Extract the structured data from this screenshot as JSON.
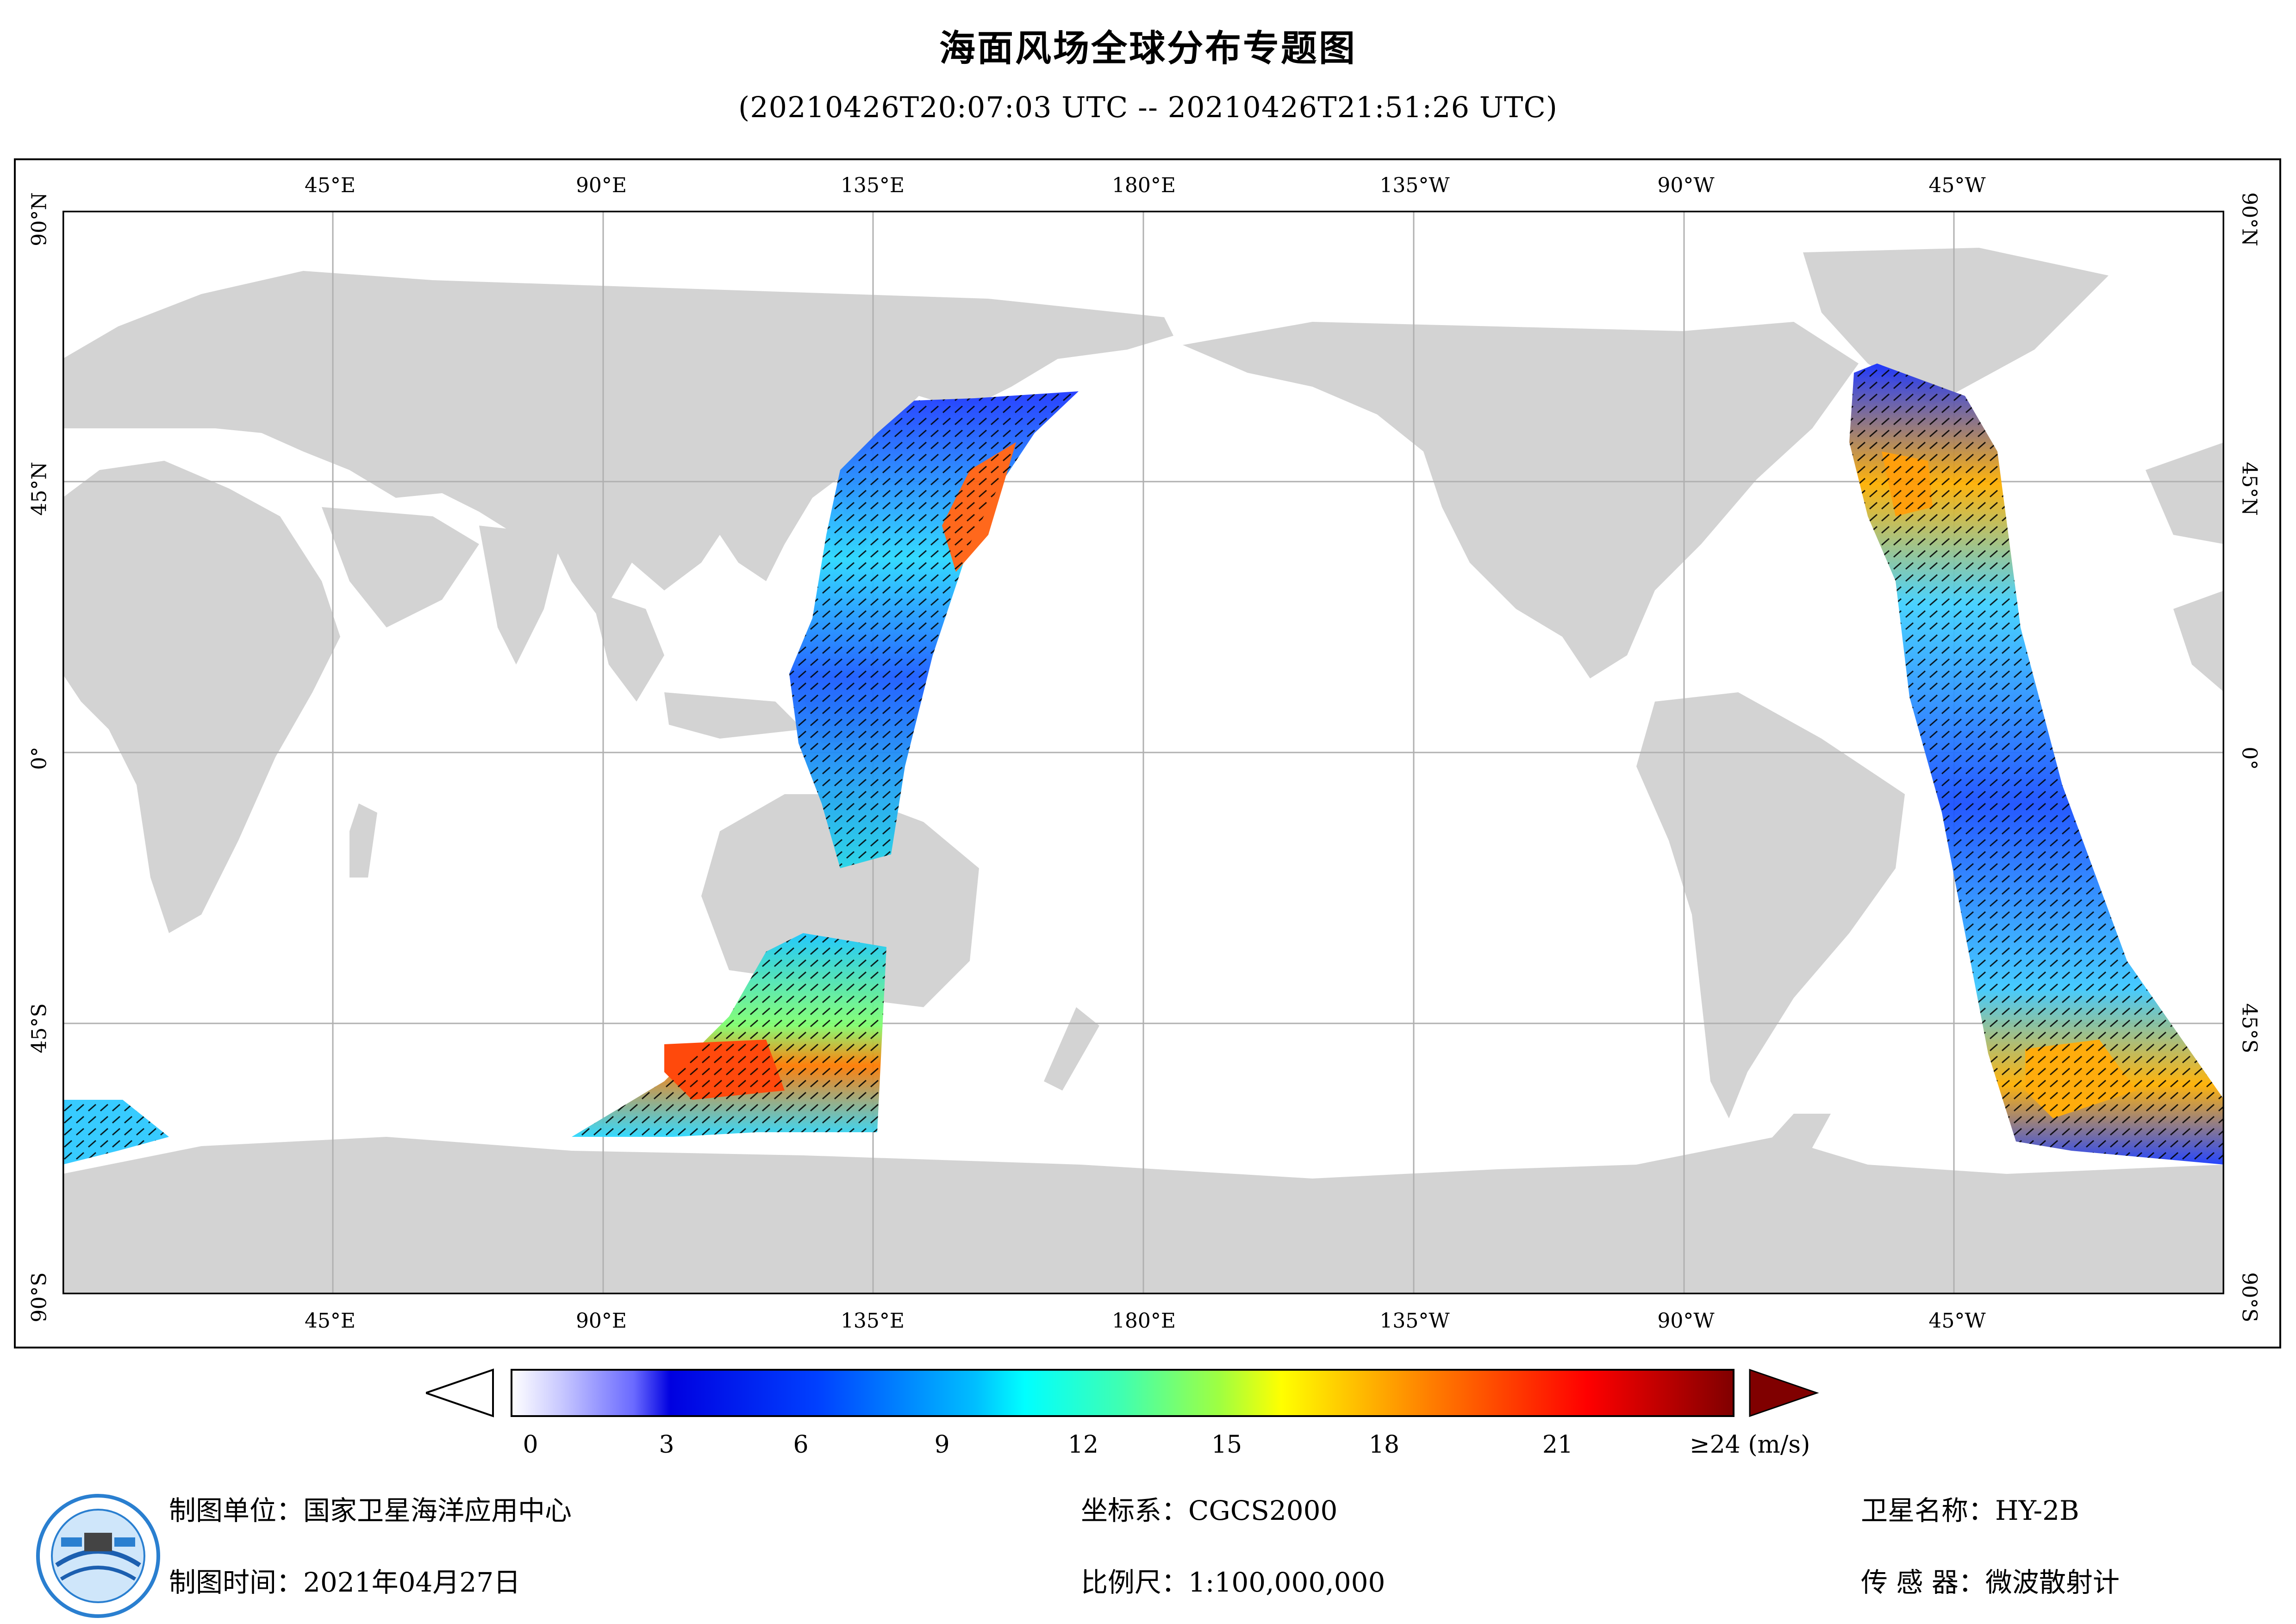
{
  "title": "海面风场全球分布专题图",
  "subtitle": "(20210426T20:07:03 UTC -- 20210426T21:51:26 UTC)",
  "map": {
    "lon_labels": [
      "45°E",
      "90°E",
      "135°E",
      "180°E",
      "135°W",
      "90°W",
      "45°W"
    ],
    "lat_labels": [
      "90°N",
      "45°N",
      "0°",
      "45°S",
      "90°S"
    ],
    "projection": "equirectangular, centered 180°",
    "land_color": "#d3d3d3",
    "ocean_color": "#ffffff",
    "grid_color": "#b0b0b0"
  },
  "colorbar": {
    "ticks": [
      "0",
      "3",
      "6",
      "9",
      "12",
      "15",
      "18",
      "21",
      "≥24 (m/s)"
    ],
    "range": [
      0,
      24
    ],
    "unit": "m/s"
  },
  "footer": {
    "unit_label": "制图单位：国家卫星海洋应用中心",
    "date_label": "制图时间：2021年04月27日",
    "crs_label": "坐标系：CGCS2000",
    "scale_label": "比例尺：1:100,000,000",
    "satellite_label": "卫星名称：HY-2B",
    "sensor_label": "传 感 器：微波散射计"
  },
  "logo": {
    "icon": "nsoas-logo-icon"
  }
}
